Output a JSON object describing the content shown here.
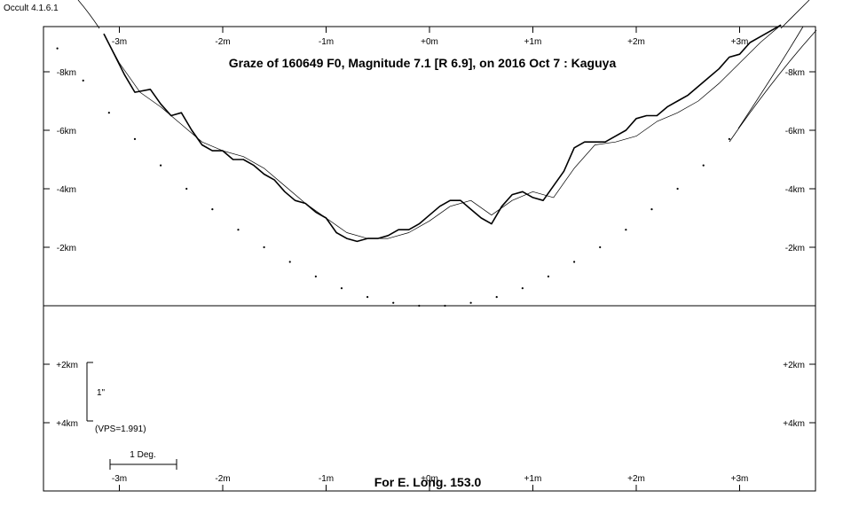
{
  "app_version": "Occult 4.1.6.1",
  "chart_data": {
    "type": "line",
    "title": "Graze of  160649 F0,  Magnitude 7.1 [R 6.9],  on 2016 Oct  7  :  Kaguya",
    "footer": "For E. Long. 153.0",
    "x_unit": "arc minutes",
    "x_ticks": [
      "-3m",
      "-2m",
      "-1m",
      "+0m",
      "+1m",
      "+2m",
      "+3m"
    ],
    "x_range": [
      -3.75,
      3.75
    ],
    "upper_y_ticks": [
      "-8km",
      "-6km",
      "-4km",
      "-2km"
    ],
    "upper_y_range": [
      0,
      9.5
    ],
    "lower_y_ticks": [
      "+2km",
      "+4km"
    ],
    "scale_bar_vertical_label": "1\"",
    "vps_label": "(VPS=1.991)",
    "scale_bar_horizontal_label": "1 Deg.",
    "series": [
      {
        "style": "thick-jagged",
        "x": [
          -3.15,
          -3.05,
          -2.95,
          -2.85,
          -2.7,
          -2.6,
          -2.5,
          -2.4,
          -2.3,
          -2.2,
          -2.1,
          -2.0,
          -1.9,
          -1.8,
          -1.7,
          -1.6,
          -1.5,
          -1.4,
          -1.3,
          -1.2,
          -1.1,
          -1.0,
          -0.9,
          -0.8,
          -0.7,
          -0.6,
          -0.5,
          -0.4,
          -0.3,
          -0.2,
          -0.1,
          0.0,
          0.1,
          0.2,
          0.3,
          0.4,
          0.5,
          0.6,
          0.7,
          0.8,
          0.9,
          1.0,
          1.1,
          1.2,
          1.3,
          1.4,
          1.5,
          1.6,
          1.7,
          1.8,
          1.9,
          2.0,
          2.1,
          2.2,
          2.3,
          2.4,
          2.5,
          2.6,
          2.7,
          2.8,
          2.9,
          3.0,
          3.1,
          3.2,
          3.3,
          3.4
        ],
        "y": [
          9.3,
          8.6,
          7.9,
          7.3,
          7.4,
          6.9,
          6.5,
          6.6,
          6.0,
          5.5,
          5.3,
          5.3,
          5.0,
          5.0,
          4.8,
          4.5,
          4.3,
          3.9,
          3.6,
          3.5,
          3.2,
          3.0,
          2.5,
          2.3,
          2.2,
          2.3,
          2.3,
          2.4,
          2.6,
          2.6,
          2.8,
          3.1,
          3.4,
          3.6,
          3.6,
          3.3,
          3.0,
          2.8,
          3.4,
          3.8,
          3.9,
          3.7,
          3.6,
          4.1,
          4.6,
          5.4,
          5.6,
          5.6,
          5.6,
          5.8,
          6.0,
          6.4,
          6.5,
          6.5,
          6.8,
          7.0,
          7.2,
          7.5,
          7.8,
          8.1,
          8.5,
          8.6,
          9.0,
          9.2,
          9.4,
          9.6
        ]
      },
      {
        "style": "thin-smooth",
        "x": [
          -3.15,
          -3.0,
          -2.8,
          -2.6,
          -2.4,
          -2.2,
          -2.0,
          -1.8,
          -1.6,
          -1.4,
          -1.2,
          -1.0,
          -0.8,
          -0.6,
          -0.4,
          -0.2,
          0.0,
          0.2,
          0.4,
          0.6,
          0.8,
          1.0,
          1.2,
          1.4,
          1.6,
          1.8,
          2.0,
          2.2,
          2.4,
          2.6,
          2.8,
          3.0,
          3.2,
          3.4
        ],
        "y": [
          9.3,
          8.3,
          7.3,
          6.8,
          6.2,
          5.6,
          5.3,
          5.1,
          4.7,
          4.1,
          3.5,
          3.0,
          2.5,
          2.3,
          2.3,
          2.5,
          2.9,
          3.4,
          3.6,
          3.1,
          3.6,
          3.9,
          3.7,
          4.7,
          5.5,
          5.6,
          5.8,
          6.3,
          6.6,
          7.0,
          7.6,
          8.3,
          9.0,
          9.6
        ]
      },
      {
        "style": "dotted",
        "x": [
          -3.6,
          -3.35,
          -3.1,
          -2.85,
          -2.6,
          -2.35,
          -2.1,
          -1.85,
          -1.6,
          -1.35,
          -1.1,
          -0.85,
          -0.6,
          -0.35,
          -0.1,
          0.15,
          0.4,
          0.65,
          0.9,
          1.15,
          1.4,
          1.65,
          1.9,
          2.15,
          2.4,
          2.65,
          2.9
        ],
        "y": [
          8.8,
          7.7,
          6.6,
          5.7,
          4.8,
          4.0,
          3.3,
          2.6,
          2.0,
          1.5,
          1.0,
          0.6,
          0.3,
          0.1,
          0.0,
          0.0,
          0.1,
          0.3,
          0.6,
          1.0,
          1.5,
          2.0,
          2.6,
          3.3,
          4.0,
          4.8,
          5.7
        ]
      }
    ]
  }
}
